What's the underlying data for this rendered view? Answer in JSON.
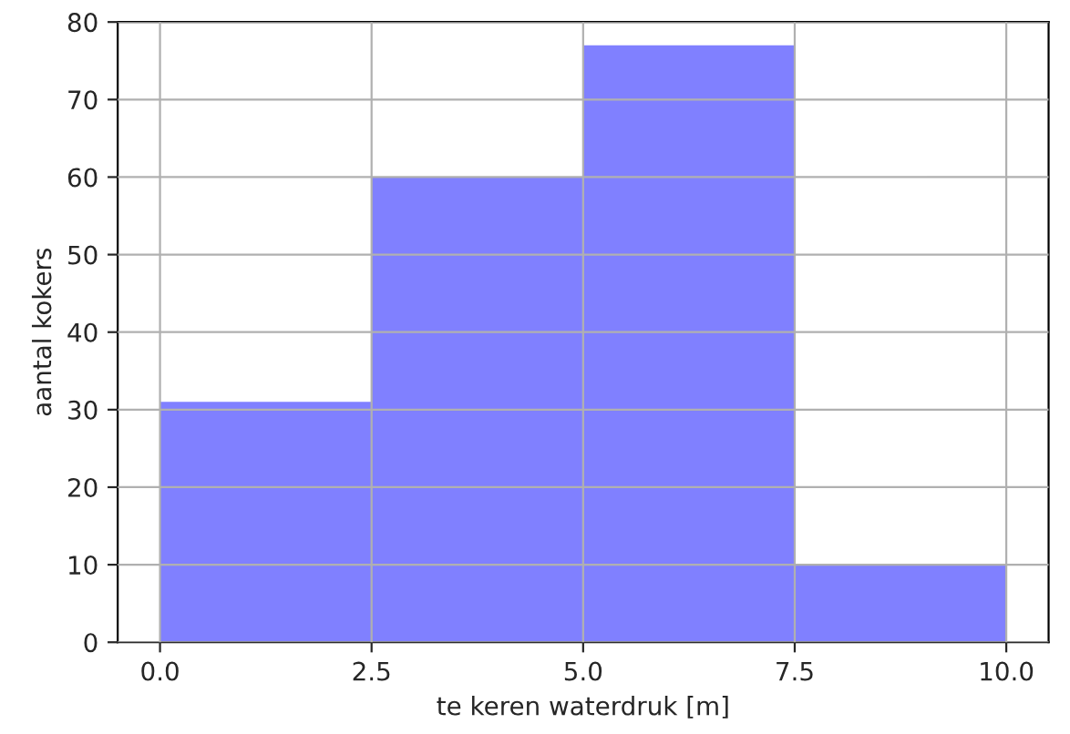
{
  "chart_data": {
    "type": "histogram",
    "xlabel": "te keren waterdruk [m]",
    "ylabel": "aantal kokers",
    "bins": [
      0,
      2.5,
      5,
      7.5,
      10
    ],
    "values": [
      31,
      60,
      77,
      10
    ],
    "color": "#8080ff",
    "xlim": [
      -0.5,
      10.5
    ],
    "xticks": [
      {
        "value": 0,
        "label": "0.0"
      },
      2.5,
      {
        "value": 5,
        "label": "5.0"
      },
      7.5,
      {
        "value": 10,
        "label": "10.0"
      }
    ],
    "ylim": [
      0,
      80
    ],
    "yticks": [
      0,
      10,
      20,
      30,
      40,
      50,
      60,
      70,
      80
    ],
    "grid": true
  }
}
